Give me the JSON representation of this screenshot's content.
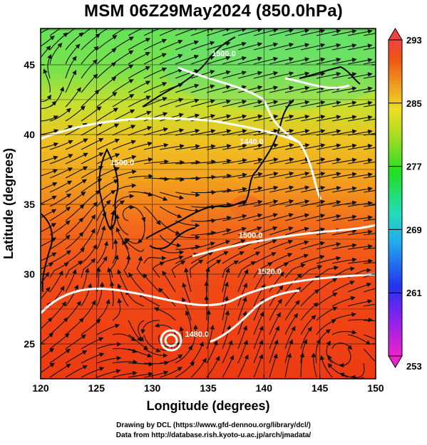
{
  "title": "MSM 06Z29May2024 (850.0hPa)",
  "chart_data": {
    "type": "map",
    "xlabel": "Longitude (degrees)",
    "ylabel": "Latitude  (degrees)",
    "xlim": [
      120,
      150
    ],
    "ylim": [
      22.5,
      47.6
    ],
    "xticks": [
      120,
      125,
      130,
      135,
      140,
      145,
      150
    ],
    "yticks": [
      25,
      30,
      35,
      40,
      45
    ],
    "grid": true,
    "colorbar": {
      "min": 253,
      "max": 293,
      "ticks": [
        293,
        285,
        277,
        269,
        261,
        253
      ],
      "colors": [
        "#ee22cc",
        "#2233ee",
        "#22dddd",
        "#22dd22",
        "#dddd22",
        "#ee5511",
        "#ee4444"
      ]
    },
    "contours": [
      {
        "label": "1500.0",
        "lon": 136.4,
        "lat": 45.6
      },
      {
        "label": "1500.0",
        "lon": 127.3,
        "lat": 37.8
      },
      {
        "label": "1440.0",
        "lon": 138.9,
        "lat": 39.3
      },
      {
        "label": "1500.0",
        "lon": 138.8,
        "lat": 32.6
      },
      {
        "label": "1520.0",
        "lon": 140.5,
        "lat": 30.0
      },
      {
        "label": "1480.0",
        "lon": 134.0,
        "lat": 25.5
      }
    ]
  },
  "credits": {
    "line1": "Drawing by DCL (https://www.gfd-dennou.org/library/dcl/)",
    "line2": "Data from http://database.rish.kyoto-u.ac.jp/arch/jmadata/"
  }
}
